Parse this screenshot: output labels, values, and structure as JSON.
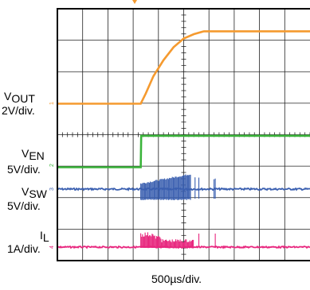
{
  "chart_data": {
    "type": "line",
    "xlabel": "500µs/div.",
    "time_unit_per_div": "500µs",
    "grid": {
      "x_divisions": 10,
      "y_divisions": 8
    },
    "trigger_division": 3.3,
    "channels": [
      {
        "name": "VOUT",
        "label_main": "V",
        "label_sub": "OUT",
        "scale": "2V/div.",
        "marker": "1",
        "color": "#f59a2f",
        "unit": "V",
        "points": [
          [
            0,
            0
          ],
          [
            3.3,
            0
          ],
          [
            3.5,
            0.7
          ],
          [
            3.8,
            1.9
          ],
          [
            4.2,
            3.0
          ],
          [
            4.6,
            3.9
          ],
          [
            5.0,
            4.5
          ],
          [
            5.4,
            4.8
          ],
          [
            5.8,
            5.0
          ],
          [
            10,
            5.0
          ]
        ]
      },
      {
        "name": "VEN",
        "label_main": "V",
        "label_sub": "EN",
        "scale": "5V/div.",
        "marker": "2",
        "color": "#3bb43b",
        "unit": "V",
        "points": [
          [
            0,
            0
          ],
          [
            3.3,
            0
          ],
          [
            3.32,
            5
          ],
          [
            10,
            5
          ]
        ]
      },
      {
        "name": "VSW",
        "label_main": "V",
        "label_sub": "SW",
        "scale": "5V/div.",
        "marker": "3",
        "color": "#3a5fb0",
        "unit": "V"
      },
      {
        "name": "IL",
        "label_main": "I",
        "label_sub": "L",
        "scale": "1A/div.",
        "marker": "4",
        "color": "#e8267e",
        "unit": "A"
      }
    ]
  }
}
